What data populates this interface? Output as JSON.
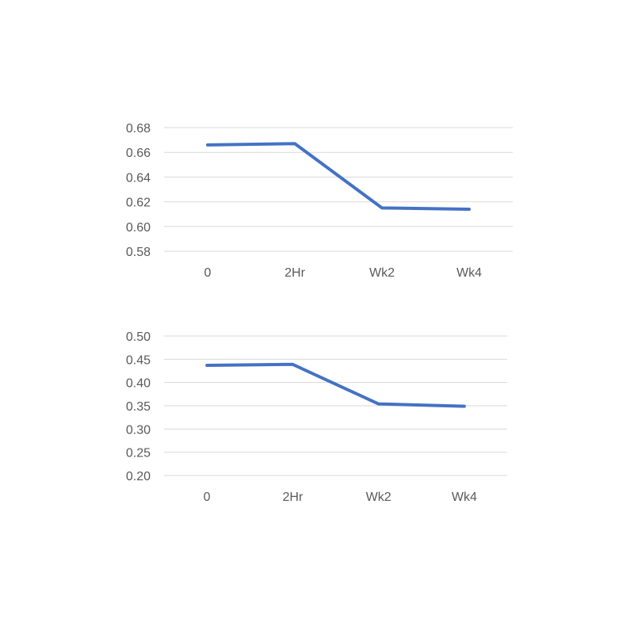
{
  "chart_data": [
    {
      "type": "line",
      "categories": [
        "0",
        "2Hr",
        "Wk2",
        "Wk4"
      ],
      "series": [
        {
          "values": [
            0.666,
            0.667,
            0.615,
            0.614
          ],
          "color": "#4472c4"
        }
      ],
      "ylim": [
        0.58,
        0.68
      ],
      "yticks": [
        "0.58",
        "0.60",
        "0.62",
        "0.64",
        "0.66",
        "0.68"
      ],
      "grid": true,
      "legend": "none"
    },
    {
      "type": "line",
      "categories": [
        "0",
        "2Hr",
        "Wk2",
        "Wk4"
      ],
      "series": [
        {
          "values": [
            0.437,
            0.439,
            0.354,
            0.349
          ],
          "color": "#4472c4"
        }
      ],
      "ylim": [
        0.2,
        0.5
      ],
      "yticks": [
        "0.20",
        "0.25",
        "0.30",
        "0.35",
        "0.40",
        "0.45",
        "0.50"
      ],
      "grid": true,
      "legend": "none"
    }
  ]
}
